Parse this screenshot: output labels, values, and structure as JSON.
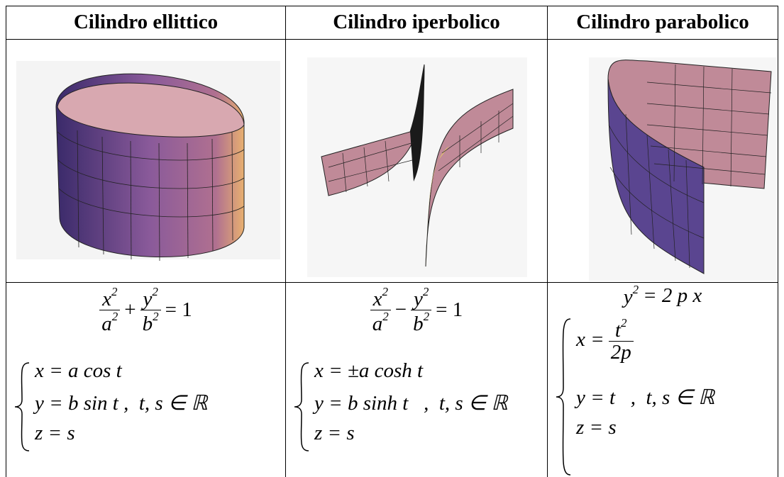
{
  "table": {
    "headers": [
      "Cilindro ellittico",
      "Cilindro iperbolico",
      "Cilindro parabolico"
    ],
    "formulas": [
      {
        "equation": {
          "left": {
            "num": "x",
            "num_exp": "2",
            "den": "a",
            "den_exp": "2"
          },
          "operator": "+",
          "right": {
            "num": "y",
            "num_exp": "2",
            "den": "b",
            "den_exp": "2"
          },
          "rhs": "= 1"
        },
        "system": [
          "x = a cos t",
          "y = b sin t ,  t, s ∈ ℝ",
          "z = s"
        ]
      },
      {
        "equation": {
          "left": {
            "num": "x",
            "num_exp": "2",
            "den": "a",
            "den_exp": "2"
          },
          "operator": "−",
          "right": {
            "num": "y",
            "num_exp": "2",
            "den": "b",
            "den_exp": "2"
          },
          "rhs": "= 1"
        },
        "system": [
          "x = ±a cosh t",
          "y = b sinh t   ,  t, s ∈ ℝ",
          "z = s"
        ]
      },
      {
        "equation": {
          "base": "y",
          "exp": "2",
          "rhs": "= 2 p x"
        },
        "system": [
          {
            "lhs": "x =",
            "num": "t",
            "num_exp": "2",
            "den": "2p"
          },
          "y = t   ,  t, s ∈ ℝ",
          "z = s"
        ]
      }
    ]
  }
}
